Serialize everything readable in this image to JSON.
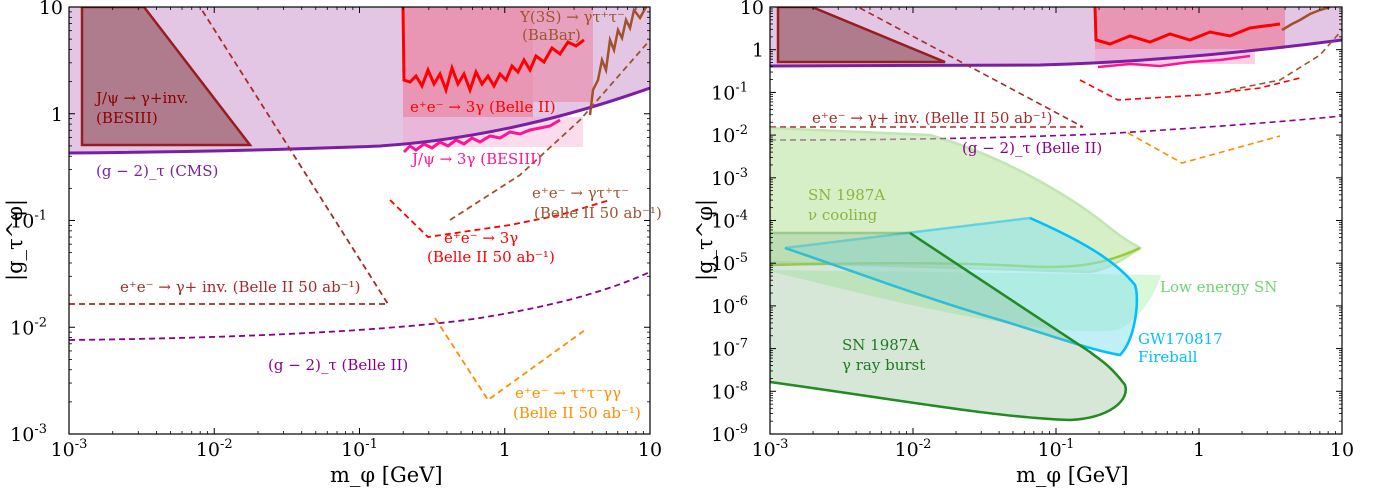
{
  "chart_data": [
    {
      "type": "area",
      "xlabel": "m_φ [GeV]",
      "ylabel": "|g_τ^φ|",
      "xscale": "log",
      "yscale": "log",
      "xlim": [
        0.001,
        10
      ],
      "ylim": [
        0.001,
        10
      ],
      "xticks": [
        "10^{-3}",
        "10^{-2}",
        "10^{-1}",
        "1",
        "10"
      ],
      "yticks": [
        "10^{-3}",
        "10^{-2}",
        "10^{-1}",
        "1",
        "10"
      ],
      "colors": {
        "g2": "#7b1fa2",
        "besiii_inv": "#8b0000",
        "belle_3g": "#ff0000",
        "babar": "#a0522d",
        "jpsi3g": "#ff1493",
        "belle_inv50": "#a52a2a",
        "belle_4tau": "#ff8c00"
      },
      "series": [
        {
          "name": "(g−2)_τ (CMS)",
          "style": "solid",
          "x": [
            0.001,
            0.01,
            0.1,
            0.3,
            1,
            3,
            10
          ],
          "y": [
            0.42,
            0.43,
            0.48,
            0.58,
            0.78,
            1.1,
            1.8
          ]
        },
        {
          "name": "J/ψ → γ+inv. (BESIII)",
          "style": "filled triangle",
          "x": [
            0.001,
            0.0033,
            0.016,
            0.001
          ],
          "y": [
            10,
            10,
            0.5,
            0.5
          ]
        },
        {
          "name": "e⁺e⁻ → 3γ (Belle II)",
          "style": "solid",
          "x": [
            0.17,
            0.25,
            0.4,
            0.7,
            1.0,
            1.5,
            2.5,
            4.0,
            6.0
          ],
          "y": [
            2.0,
            1.8,
            2.5,
            1.9,
            3.0,
            3.5,
            3.5,
            4.5,
            5.0
          ]
        },
        {
          "name": "Υ(3S) → γτ⁺τ⁻ (BaBar)",
          "style": "solid",
          "x": [
            3.5,
            4.5,
            5.5,
            6.5,
            7.5,
            8.5,
            9.5
          ],
          "y": [
            1.3,
            1.8,
            3.0,
            5.0,
            7.0,
            8.5,
            10
          ]
        },
        {
          "name": "J/ψ → 3γ (BESIII)",
          "style": "solid",
          "x": [
            0.17,
            0.3,
            0.6,
            1.0,
            1.5,
            2.5
          ],
          "y": [
            0.4,
            0.45,
            0.48,
            0.5,
            0.6,
            0.75
          ]
        },
        {
          "name": "(g−2)_τ (Belle II)",
          "style": "dashed",
          "x": [
            0.001,
            0.01,
            0.1,
            0.5,
            1,
            3,
            10
          ],
          "y": [
            0.0072,
            0.0073,
            0.0085,
            0.011,
            0.013,
            0.018,
            0.031
          ]
        },
        {
          "name": "e⁺e⁻ → γ+ inv. (Belle II 50 ab⁻¹)",
          "style": "dashed",
          "x": [
            0.001,
            0.14,
            0.0035
          ],
          "y": [
            0.016,
            0.016,
            10
          ]
        },
        {
          "name": "e⁺e⁻ → 3γ (Belle II 50 ab⁻¹)",
          "style": "dashed",
          "x": [
            0.2,
            0.3,
            1.0,
            3.0,
            6.0
          ],
          "y": [
            0.18,
            0.07,
            0.09,
            0.12,
            0.18
          ]
        },
        {
          "name": "e⁺e⁻ → γτ⁺τ⁻ (Belle II 50 ab⁻¹)",
          "style": "dashed",
          "x": [
            0.4,
            2.0,
            10
          ],
          "y": [
            0.2,
            0.5,
            2.2
          ]
        },
        {
          "name": "e⁺e⁻ → τ⁺τ⁻γγ (Belle II 50 ab⁻¹)",
          "style": "dashed",
          "x": [
            0.3,
            0.75,
            3.5
          ],
          "y": [
            0.011,
            0.002,
            0.0085
          ]
        }
      ],
      "annotations": [
        "J/ψ → γ+inv.",
        "(BESIII)",
        "Υ(3S) → γτ⁺τ⁻",
        "(BaBar)",
        "e⁺e⁻ → 3γ (Belle II)",
        "J/ψ → 3γ (BESIII)",
        "(g − 2)_τ (CMS)",
        "e⁺e⁻ → γτ⁺τ⁻",
        "(Belle II 50 ab⁻¹)",
        "e⁺e⁻ → 3γ",
        "(Belle II 50 ab⁻¹)",
        "e⁺e⁻ → γ+ inv. (Belle II 50 ab⁻¹)",
        "(g − 2)_τ (Belle II)",
        "e⁺e⁻ → τ⁺τ⁻γγ",
        "(Belle II 50 ab⁻¹)"
      ]
    },
    {
      "type": "area",
      "xlabel": "m_φ [GeV]",
      "ylabel": "|g_τ^φ|",
      "xscale": "log",
      "yscale": "log",
      "xlim": [
        0.001,
        10
      ],
      "ylim": [
        1e-09,
        10
      ],
      "xticks": [
        "10^{-3}",
        "10^{-2}",
        "10^{-1}",
        "1",
        "10"
      ],
      "yticks": [
        "10^{-9}",
        "10^{-8}",
        "10^{-7}",
        "10^{-6}",
        "10^{-5}",
        "10^{-4}",
        "10^{-3}",
        "10^{-2}",
        "10^{-1}",
        "1",
        "10"
      ],
      "colors": {
        "sn_cool": "#9acd32",
        "low_sn": "#90ee90",
        "gw": "#00bfff",
        "sn_burst": "#228b22"
      },
      "series": [
        {
          "name": "SN 1987A ν cooling",
          "style": "filled",
          "x": [
            0.001,
            0.01,
            0.1,
            0.2,
            0.35
          ],
          "y": [
            1e-05,
            1e-05,
            9e-06,
            1e-05,
            2.5e-05
          ]
        },
        {
          "name": "Low energy SN",
          "style": "filled",
          "x": [
            0.001,
            0.01,
            0.1,
            0.3
          ],
          "y": [
            5e-06,
            1.5e-06,
            7e-07,
            1e-06
          ]
        },
        {
          "name": "GW170817 Fireball",
          "style": "filled",
          "x": [
            0.0015,
            0.01,
            0.1,
            0.2,
            0.3,
            0.06
          ],
          "y": [
            2e-05,
            2e-06,
            2.5e-07,
            6e-08,
            4e-06,
            9e-05
          ]
        },
        {
          "name": "SN 1987A γ ray burst",
          "style": "filled",
          "x": [
            0.001,
            0.01,
            0.12,
            0.25,
            0.0085
          ],
          "y": [
            1.6e-08,
            5e-09,
            1.7e-09,
            1.8e-08,
            4.5e-05
          ]
        }
      ],
      "annotations": [
        "e⁺e⁻ → γ+ inv. (Belle II 50 ab⁻¹)",
        "(g − 2)_τ (Belle II)",
        "SN 1987A",
        "ν cooling",
        "Low energy SN",
        "GW170817",
        "Fireball",
        "SN 1987A",
        "γ ray burst"
      ]
    }
  ]
}
